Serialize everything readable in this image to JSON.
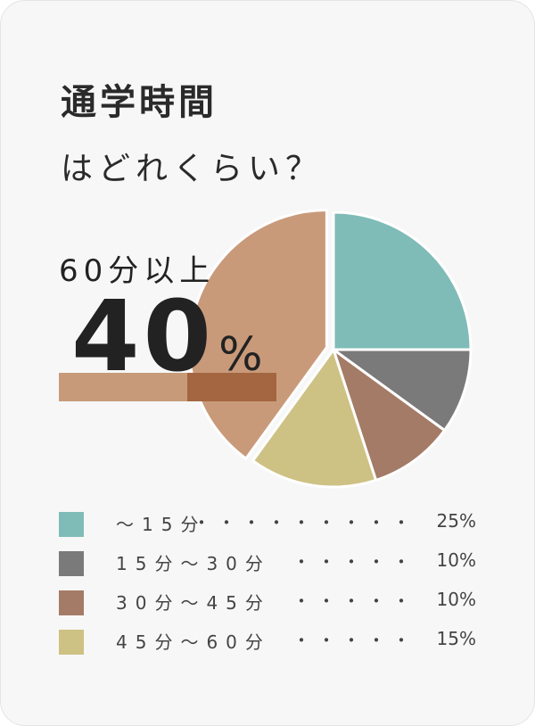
{
  "chart_data": {
    "type": "pie",
    "title": "通学時間",
    "subtitle": "はどれくらい？",
    "slices": [
      {
        "label": "〜15分",
        "value": 25,
        "pct_label": "25%",
        "color": "#7fbcb7",
        "dots": "・・・・・・・・・"
      },
      {
        "label": "15分〜30分",
        "value": 10,
        "pct_label": "10%",
        "color": "#7a7a7a",
        "dots": "・・・・・"
      },
      {
        "label": "30分〜45分",
        "value": 10,
        "pct_label": "10%",
        "color": "#a47b66",
        "dots": "・・・・・"
      },
      {
        "label": "45分〜60分",
        "value": 15,
        "pct_label": "15%",
        "color": "#cec184",
        "dots": "・・・・・"
      },
      {
        "label": "60分以上",
        "value": 40,
        "color": "#c99a7a",
        "exploded": true
      }
    ],
    "callout": {
      "label": "60分以上",
      "value": "40",
      "unit": "%"
    }
  }
}
